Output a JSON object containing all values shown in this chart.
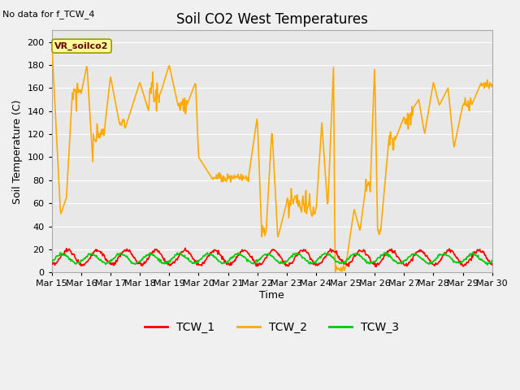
{
  "title": "Soil CO2 West Temperatures",
  "no_data_text": "No data for f_TCW_4",
  "ylabel": "Soil Temperature (C)",
  "xlabel": "Time",
  "ylim": [
    0,
    210
  ],
  "yticks": [
    0,
    20,
    40,
    60,
    80,
    100,
    120,
    140,
    160,
    180,
    200
  ],
  "xlim_days": [
    15,
    30
  ],
  "xtick_labels": [
    "Mar 15",
    "Mar 16",
    "Mar 17",
    "Mar 18",
    "Mar 19",
    "Mar 20",
    "Mar 21",
    "Mar 22",
    "Mar 23",
    "Mar 24",
    "Mar 25",
    "Mar 26",
    "Mar 27",
    "Mar 28",
    "Mar 29",
    "Mar 30"
  ],
  "bg_color": "#e8e8e8",
  "fig_color": "#f0f0f0",
  "grid_color": "#ffffff",
  "vr_box_color": "#ffff99",
  "vr_box_edge": "#999900",
  "vr_text": "VR_soilco2",
  "legend_entries": [
    "TCW_1",
    "TCW_2",
    "TCW_3"
  ],
  "legend_colors": [
    "#ff0000",
    "#ffaa00",
    "#00cc00"
  ],
  "TCW1_color": "#ff0000",
  "TCW2_color": "#ffaa00",
  "TCW3_color": "#00cc00",
  "TCW1_lw": 1.2,
  "TCW2_lw": 1.2,
  "TCW3_lw": 1.2,
  "title_fontsize": 12,
  "label_fontsize": 9,
  "tick_fontsize": 8
}
